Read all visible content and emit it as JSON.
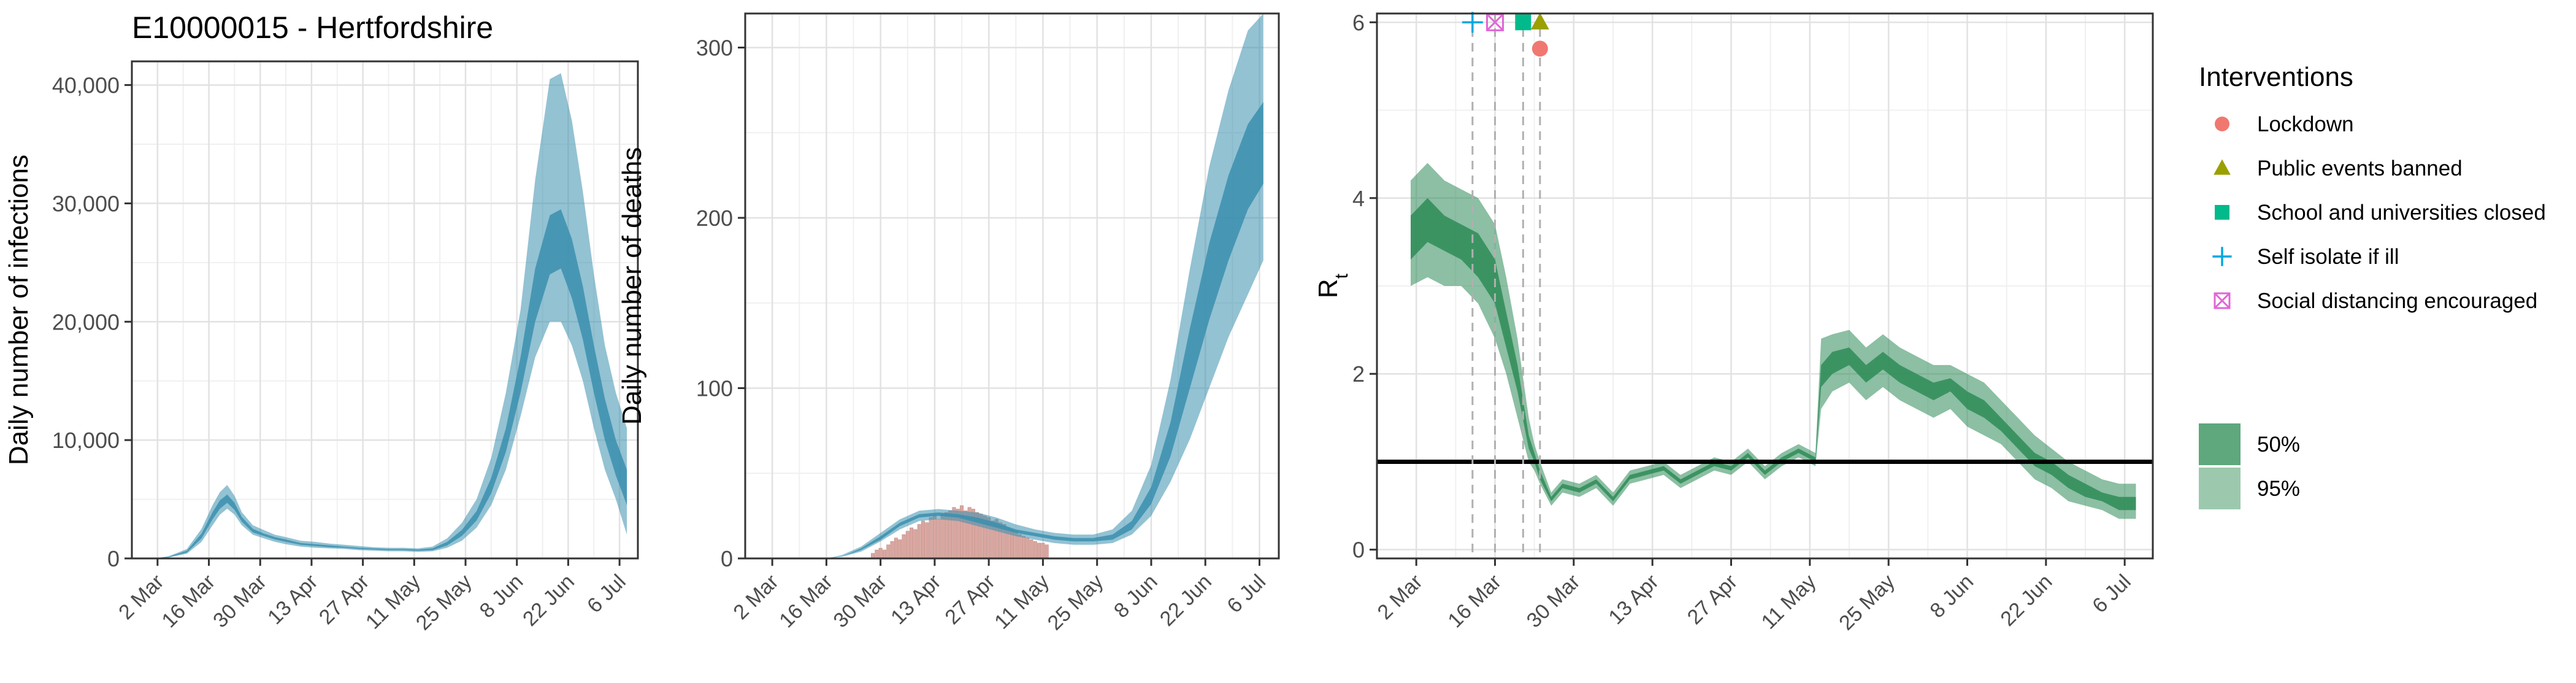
{
  "page_title": "E10000015 - Hertfordshire",
  "chart_data": [
    {
      "type": "area",
      "title": "E10000015 - Hertfordshire",
      "xlabel": "",
      "ylabel": "Daily number of infections",
      "x_ticks": [
        "2 Mar",
        "16 Mar",
        "30 Mar",
        "13 Apr",
        "27 Apr",
        "11 May",
        "25 May",
        "8 Jun",
        "22 Jun",
        "6 Jul"
      ],
      "y_ticks": [
        0,
        10000,
        20000,
        30000,
        40000
      ],
      "y_tick_labels": [
        "0",
        "10,000",
        "20,000",
        "30,000",
        "40,000"
      ],
      "xlim": [
        "2020-02-24",
        "2020-07-11"
      ],
      "ylim": [
        0,
        42000
      ],
      "grid": true,
      "band_color": "#3a8fae",
      "series": [
        {
          "x": [
            "2020-03-01",
            "2020-03-05",
            "2020-03-10",
            "2020-03-14",
            "2020-03-17",
            "2020-03-19",
            "2020-03-21",
            "2020-03-23",
            "2020-03-25",
            "2020-03-28",
            "2020-03-31",
            "2020-04-03",
            "2020-04-06",
            "2020-04-10",
            "2020-04-14",
            "2020-04-18",
            "2020-04-22",
            "2020-04-26",
            "2020-04-30",
            "2020-05-04",
            "2020-05-08",
            "2020-05-12",
            "2020-05-16",
            "2020-05-20",
            "2020-05-24",
            "2020-05-28",
            "2020-06-01",
            "2020-06-05",
            "2020-06-09",
            "2020-06-13",
            "2020-06-17",
            "2020-06-20",
            "2020-06-23",
            "2020-06-26",
            "2020-06-29",
            "2020-07-02",
            "2020-07-05",
            "2020-07-08"
          ],
          "lo95": [
            0,
            80,
            400,
            1400,
            2800,
            3700,
            4200,
            3700,
            2800,
            2000,
            1700,
            1400,
            1200,
            1000,
            900,
            850,
            800,
            700,
            650,
            600,
            600,
            550,
            600,
            900,
            1500,
            2600,
            4500,
            7500,
            12000,
            17000,
            20000,
            20000,
            18000,
            15000,
            11000,
            7500,
            5000,
            2000
          ],
          "lo50": [
            0,
            100,
            500,
            1700,
            3300,
            4200,
            4700,
            4100,
            3100,
            2200,
            1900,
            1600,
            1400,
            1150,
            1050,
            950,
            900,
            800,
            750,
            700,
            700,
            650,
            700,
            1100,
            1900,
            3200,
            5500,
            9000,
            14000,
            20000,
            24000,
            24500,
            22000,
            18500,
            14000,
            10000,
            7000,
            4500
          ],
          "hi50": [
            0,
            140,
            650,
            2100,
            3900,
            4900,
            5400,
            4700,
            3500,
            2500,
            2100,
            1800,
            1600,
            1300,
            1200,
            1100,
            1000,
            900,
            850,
            800,
            800,
            750,
            850,
            1400,
            2400,
            4000,
            6800,
            11000,
            17000,
            24500,
            29000,
            29500,
            27000,
            23000,
            18000,
            13500,
            10000,
            7500
          ],
          "hi95": [
            0,
            180,
            800,
            2500,
            4500,
            5600,
            6200,
            5300,
            3900,
            2800,
            2400,
            2000,
            1800,
            1500,
            1400,
            1250,
            1150,
            1050,
            950,
            900,
            900,
            850,
            1000,
            1700,
            3000,
            5000,
            8500,
            14000,
            21000,
            32000,
            40500,
            41000,
            37000,
            31000,
            24000,
            18000,
            14000,
            11000
          ]
        }
      ]
    },
    {
      "type": "area",
      "title": "",
      "xlabel": "",
      "ylabel": "Daily number of deaths",
      "x_ticks": [
        "2 Mar",
        "16 Mar",
        "30 Mar",
        "13 Apr",
        "27 Apr",
        "11 May",
        "25 May",
        "8 Jun",
        "22 Jun",
        "6 Jul"
      ],
      "y_ticks": [
        0,
        100,
        200,
        300
      ],
      "y_tick_labels": [
        "0",
        "100",
        "200",
        "300"
      ],
      "xlim": [
        "2020-02-24",
        "2020-07-11"
      ],
      "ylim": [
        0,
        320
      ],
      "grid": true,
      "band_color": "#3a8fae",
      "bar_color": "#d9a6a0",
      "bars": {
        "x": [
          "2020-03-28",
          "2020-03-29",
          "2020-03-30",
          "2020-03-31",
          "2020-04-01",
          "2020-04-02",
          "2020-04-03",
          "2020-04-04",
          "2020-04-05",
          "2020-04-06",
          "2020-04-07",
          "2020-04-08",
          "2020-04-09",
          "2020-04-10",
          "2020-04-11",
          "2020-04-12",
          "2020-04-13",
          "2020-04-14",
          "2020-04-15",
          "2020-04-16",
          "2020-04-17",
          "2020-04-18",
          "2020-04-19",
          "2020-04-20",
          "2020-04-21",
          "2020-04-22",
          "2020-04-23",
          "2020-04-24",
          "2020-04-25",
          "2020-04-26",
          "2020-04-27",
          "2020-04-28",
          "2020-04-29",
          "2020-04-30",
          "2020-05-01",
          "2020-05-02",
          "2020-05-03",
          "2020-05-04",
          "2020-05-05",
          "2020-05-06",
          "2020-05-07",
          "2020-05-08",
          "2020-05-09",
          "2020-05-10",
          "2020-05-11",
          "2020-05-12"
        ],
        "values": [
          3,
          5,
          6,
          5,
          8,
          10,
          12,
          11,
          14,
          16,
          18,
          17,
          20,
          22,
          21,
          24,
          25,
          23,
          26,
          27,
          28,
          30,
          29,
          31,
          28,
          30,
          29,
          27,
          26,
          25,
          24,
          22,
          23,
          21,
          20,
          18,
          17,
          16,
          14,
          13,
          12,
          11,
          10,
          9,
          9,
          8
        ]
      },
      "series": [
        {
          "x": [
            "2020-03-16",
            "2020-03-20",
            "2020-03-25",
            "2020-03-30",
            "2020-04-04",
            "2020-04-09",
            "2020-04-14",
            "2020-04-19",
            "2020-04-24",
            "2020-04-29",
            "2020-05-04",
            "2020-05-09",
            "2020-05-14",
            "2020-05-19",
            "2020-05-24",
            "2020-05-29",
            "2020-06-03",
            "2020-06-08",
            "2020-06-13",
            "2020-06-18",
            "2020-06-23",
            "2020-06-28",
            "2020-07-03",
            "2020-07-07"
          ],
          "lo95": [
            0,
            1,
            4,
            10,
            17,
            22,
            23,
            22,
            19,
            16,
            13,
            11,
            9,
            8,
            8,
            9,
            14,
            25,
            45,
            70,
            100,
            130,
            155,
            175
          ],
          "lo50": [
            0,
            1,
            5,
            11,
            19,
            24,
            25,
            24,
            21,
            18,
            15,
            13,
            11,
            10,
            10,
            11,
            17,
            32,
            60,
            100,
            140,
            175,
            205,
            220
          ],
          "hi50": [
            0,
            1,
            6,
            13,
            21,
            26,
            27,
            26,
            24,
            21,
            17,
            15,
            13,
            12,
            12,
            14,
            22,
            42,
            80,
            135,
            185,
            225,
            255,
            268
          ],
          "hi95": [
            0,
            2,
            7,
            15,
            23,
            28,
            29,
            28,
            27,
            24,
            20,
            17,
            15,
            14,
            14,
            17,
            28,
            55,
            105,
            170,
            230,
            275,
            310,
            320
          ]
        }
      ]
    },
    {
      "type": "area",
      "title": "",
      "xlabel": "",
      "ylabel": "R",
      "ylabel_subscript": "t",
      "x_ticks": [
        "2 Mar",
        "16 Mar",
        "30 Mar",
        "13 Apr",
        "27 Apr",
        "11 May",
        "25 May",
        "8 Jun",
        "22 Jun",
        "6 Jul"
      ],
      "y_ticks": [
        0,
        2,
        4,
        6
      ],
      "y_tick_labels": [
        "0",
        "2",
        "4",
        "6"
      ],
      "xlim": [
        "2020-02-24",
        "2020-07-11"
      ],
      "ylim": [
        -0.1,
        6.1
      ],
      "grid": true,
      "reference_line": 1,
      "band_color": "#2e8b57",
      "series": [
        {
          "x": [
            "2020-03-01",
            "2020-03-04",
            "2020-03-07",
            "2020-03-10",
            "2020-03-13",
            "2020-03-16",
            "2020-03-18",
            "2020-03-20",
            "2020-03-22",
            "2020-03-23",
            "2020-03-24",
            "2020-03-26",
            "2020-03-28",
            "2020-03-31",
            "2020-04-03",
            "2020-04-06",
            "2020-04-09",
            "2020-04-12",
            "2020-04-15",
            "2020-04-18",
            "2020-04-21",
            "2020-04-24",
            "2020-04-27",
            "2020-04-30",
            "2020-05-03",
            "2020-05-06",
            "2020-05-09",
            "2020-05-12",
            "2020-05-13",
            "2020-05-15",
            "2020-05-18",
            "2020-05-21",
            "2020-05-24",
            "2020-05-27",
            "2020-05-30",
            "2020-06-02",
            "2020-06-05",
            "2020-06-08",
            "2020-06-11",
            "2020-06-14",
            "2020-06-17",
            "2020-06-20",
            "2020-06-23",
            "2020-06-26",
            "2020-06-29",
            "2020-07-02",
            "2020-07-05",
            "2020-07-08"
          ],
          "lo95": [
            3.0,
            3.1,
            3.0,
            3.0,
            2.8,
            2.4,
            2.0,
            1.5,
            1.0,
            0.9,
            0.75,
            0.5,
            0.65,
            0.6,
            0.7,
            0.5,
            0.75,
            0.8,
            0.85,
            0.7,
            0.8,
            0.9,
            0.85,
            1.0,
            0.8,
            0.95,
            1.05,
            0.95,
            1.6,
            1.8,
            1.9,
            1.7,
            1.85,
            1.7,
            1.6,
            1.5,
            1.6,
            1.4,
            1.3,
            1.2,
            1.0,
            0.8,
            0.7,
            0.55,
            0.5,
            0.45,
            0.35,
            0.35
          ],
          "lo50": [
            3.3,
            3.5,
            3.4,
            3.3,
            3.1,
            2.8,
            2.3,
            1.8,
            1.15,
            1.0,
            0.8,
            0.55,
            0.7,
            0.65,
            0.75,
            0.55,
            0.8,
            0.85,
            0.9,
            0.75,
            0.85,
            0.95,
            0.9,
            1.05,
            0.85,
            1.0,
            1.1,
            1.0,
            1.85,
            2.0,
            2.1,
            1.9,
            2.05,
            1.9,
            1.8,
            1.7,
            1.8,
            1.6,
            1.5,
            1.35,
            1.15,
            0.95,
            0.85,
            0.7,
            0.6,
            0.55,
            0.45,
            0.45
          ],
          "hi50": [
            3.8,
            4.0,
            3.8,
            3.7,
            3.6,
            3.3,
            2.7,
            2.1,
            1.3,
            1.1,
            0.9,
            0.6,
            0.75,
            0.7,
            0.8,
            0.6,
            0.85,
            0.9,
            0.95,
            0.8,
            0.9,
            1.0,
            0.95,
            1.1,
            0.9,
            1.05,
            1.15,
            1.05,
            2.1,
            2.25,
            2.3,
            2.1,
            2.25,
            2.1,
            2.0,
            1.9,
            1.95,
            1.8,
            1.7,
            1.5,
            1.3,
            1.1,
            1.0,
            0.85,
            0.75,
            0.65,
            0.6,
            0.6
          ],
          "hi95": [
            4.2,
            4.4,
            4.2,
            4.1,
            4.0,
            3.7,
            3.1,
            2.4,
            1.5,
            1.2,
            1.0,
            0.65,
            0.8,
            0.75,
            0.85,
            0.65,
            0.9,
            0.95,
            1.0,
            0.85,
            0.95,
            1.05,
            1.0,
            1.15,
            0.95,
            1.1,
            1.2,
            1.1,
            2.4,
            2.45,
            2.5,
            2.3,
            2.45,
            2.3,
            2.2,
            2.1,
            2.1,
            2.0,
            1.9,
            1.7,
            1.5,
            1.3,
            1.15,
            1.0,
            0.9,
            0.8,
            0.75,
            0.75
          ]
        }
      ],
      "interventions": [
        {
          "name": "Self isolate if ill",
          "date": "2020-03-12",
          "y": 6.0,
          "shape": "plus",
          "color": "#00a9e0"
        },
        {
          "name": "Social distancing encouraged",
          "date": "2020-03-16",
          "y": 6.0,
          "shape": "boxx",
          "color": "#e066d6"
        },
        {
          "name": "School and universities closed",
          "date": "2020-03-21",
          "y": 6.0,
          "shape": "square",
          "color": "#00ba8c"
        },
        {
          "name": "Public events banned",
          "date": "2020-03-24",
          "y": 6.0,
          "shape": "triangle",
          "color": "#9aa000"
        },
        {
          "name": "Lockdown",
          "date": "2020-03-24",
          "y": 5.7,
          "shape": "circle",
          "color": "#f07870"
        }
      ]
    }
  ],
  "legend": {
    "interventions_title": "Interventions",
    "interventions": [
      {
        "label": "Lockdown",
        "shape": "circle",
        "color": "#f07870"
      },
      {
        "label": "Public events banned",
        "shape": "triangle",
        "color": "#9aa000"
      },
      {
        "label": "School and universities closed",
        "shape": "square",
        "color": "#00ba8c"
      },
      {
        "label": "Self isolate if ill",
        "shape": "plus",
        "color": "#00a9e0"
      },
      {
        "label": "Social distancing encouraged",
        "shape": "boxx",
        "color": "#e066d6"
      }
    ],
    "ci": [
      {
        "label": "50%",
        "color": "#5fa77c"
      },
      {
        "label": "95%",
        "color": "#9cc9ad"
      }
    ]
  }
}
